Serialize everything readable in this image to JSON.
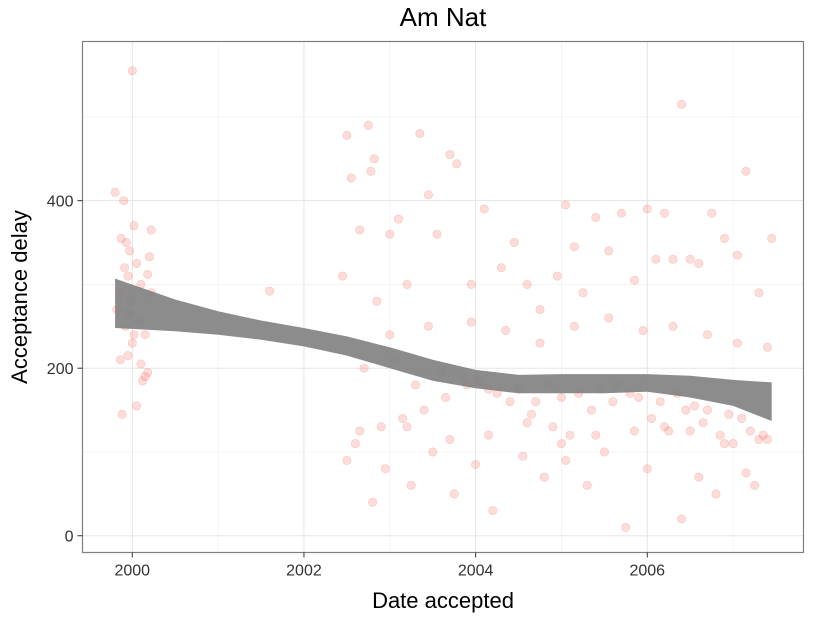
{
  "chart_data": {
    "type": "scatter",
    "title": "Am Nat",
    "xlabel": "Date accepted",
    "ylabel": "Acceptance delay",
    "xlim": [
      1999.42,
      2007.82
    ],
    "ylim": [
      -20,
      590
    ],
    "x_ticks": [
      2000,
      2002,
      2004,
      2006
    ],
    "x_tick_labels": [
      "2000",
      "2002",
      "2004",
      "2006"
    ],
    "y_ticks": [
      0,
      200,
      400
    ],
    "y_tick_labels": [
      "0",
      "200",
      "400"
    ],
    "grid": true,
    "point_color": "#f8766d",
    "point_opacity": 0.25,
    "smooth_color": "#7f7f7f",
    "smooth": {
      "x": [
        1999.8,
        2000.5,
        2001.0,
        2001.5,
        2002.0,
        2002.5,
        2003.0,
        2003.5,
        2004.0,
        2004.5,
        2005.0,
        2005.5,
        2006.0,
        2006.5,
        2007.0,
        2007.45
      ],
      "lower": [
        248,
        244,
        240,
        234,
        226,
        215,
        200,
        185,
        176,
        170,
        170,
        170,
        172,
        165,
        155,
        137
      ],
      "upper": [
        307,
        282,
        268,
        257,
        248,
        238,
        225,
        210,
        198,
        192,
        193,
        193,
        193,
        191,
        186,
        183
      ]
    },
    "series": [
      {
        "x": [
          1999.8,
          1999.82,
          1999.85,
          1999.87,
          1999.88,
          1999.9,
          1999.91,
          1999.92,
          1999.93,
          1999.95,
          1999.96,
          1999.97,
          1999.98,
          2000.0,
          2000.02,
          2000.05,
          2000.08,
          2000.1,
          2000.12,
          2000.15,
          2000.18,
          2000.2,
          2000.22,
          2000.22,
          2000.15,
          2000.02,
          2000.1,
          2000.05,
          2000.18,
          1999.86,
          1999.95,
          2000.0,
          2001.6,
          2002.45,
          2002.5,
          2002.55,
          2002.65,
          2002.75,
          2002.78,
          2002.82,
          2002.85,
          2003.0,
          2003.1,
          2003.2,
          2003.35,
          2003.45,
          2003.55,
          2003.7,
          2003.78,
          2003.95,
          2004.1,
          2004.3,
          2004.45,
          2004.6,
          2004.75,
          2004.95,
          2005.05,
          2005.15,
          2005.25,
          2005.4,
          2005.55,
          2005.7,
          2005.85,
          2006.0,
          2006.1,
          2006.2,
          2006.3,
          2006.4,
          2006.5,
          2006.6,
          2006.75,
          2006.9,
          2007.05,
          2007.15,
          2007.3,
          2007.45,
          2002.6,
          2002.9,
          2003.15,
          2003.4,
          2003.65,
          2003.9,
          2004.15,
          2004.4,
          2004.65,
          2004.9,
          2005.1,
          2005.35,
          2005.6,
          2005.8,
          2006.05,
          2006.25,
          2006.45,
          2006.65,
          2006.85,
          2007.0,
          2007.2,
          2007.4,
          2002.7,
          2003.05,
          2003.3,
          2003.6,
          2003.85,
          2004.05,
          2004.25,
          2004.5,
          2004.7,
          2004.85,
          2005.0,
          2005.2,
          2005.45,
          2005.65,
          2005.9,
          2006.15,
          2006.35,
          2006.55,
          2006.7,
          2006.95,
          2007.1,
          2007.35,
          2002.8,
          2003.25,
          2003.75,
          2004.2,
          2004.8,
          2005.3,
          2005.75,
          2006.4,
          2006.8,
          2007.25,
          2002.5,
          2002.95,
          2003.5,
          2004.0,
          2004.55,
          2005.05,
          2005.5,
          2006.0,
          2006.6,
          2007.15,
          2003.0,
          2003.45,
          2003.95,
          2004.35,
          2004.75,
          2005.15,
          2005.55,
          2005.95,
          2006.3,
          2006.7,
          2007.05,
          2007.4,
          2002.65,
          2003.2,
          2003.7,
          2004.15,
          2004.6,
          2005.0,
          2005.4,
          2005.85,
          2006.2,
          2006.5,
          2006.9,
          2007.3
        ],
        "y": [
          410,
          270,
          290,
          355,
          145,
          400,
          320,
          250,
          350,
          215,
          265,
          340,
          280,
          230,
          240,
          155,
          255,
          205,
          185,
          240,
          312,
          333,
          290,
          365,
          190,
          370,
          300,
          325,
          195,
          210,
          310,
          555,
          292,
          310,
          478,
          427,
          365,
          490,
          435,
          450,
          280,
          360,
          378,
          300,
          480,
          407,
          360,
          455,
          444,
          300,
          390,
          320,
          350,
          300,
          270,
          310,
          395,
          345,
          290,
          380,
          340,
          385,
          305,
          390,
          330,
          385,
          330,
          515,
          330,
          325,
          385,
          355,
          335,
          435,
          290,
          355,
          110,
          130,
          140,
          150,
          165,
          180,
          175,
          160,
          145,
          130,
          120,
          150,
          160,
          170,
          140,
          125,
          150,
          135,
          120,
          110,
          125,
          115,
          200,
          210,
          180,
          195,
          190,
          185,
          170,
          175,
          160,
          180,
          165,
          170,
          175,
          180,
          165,
          160,
          170,
          155,
          150,
          145,
          140,
          120,
          40,
          60,
          50,
          30,
          70,
          60,
          10,
          20,
          50,
          60,
          90,
          80,
          100,
          85,
          95,
          90,
          100,
          80,
          70,
          75,
          240,
          250,
          255,
          245,
          230,
          250,
          260,
          245,
          250,
          240,
          230,
          225,
          125,
          130,
          115,
          120,
          135,
          110,
          120,
          125,
          130,
          125,
          110,
          115
        ]
      }
    ]
  }
}
